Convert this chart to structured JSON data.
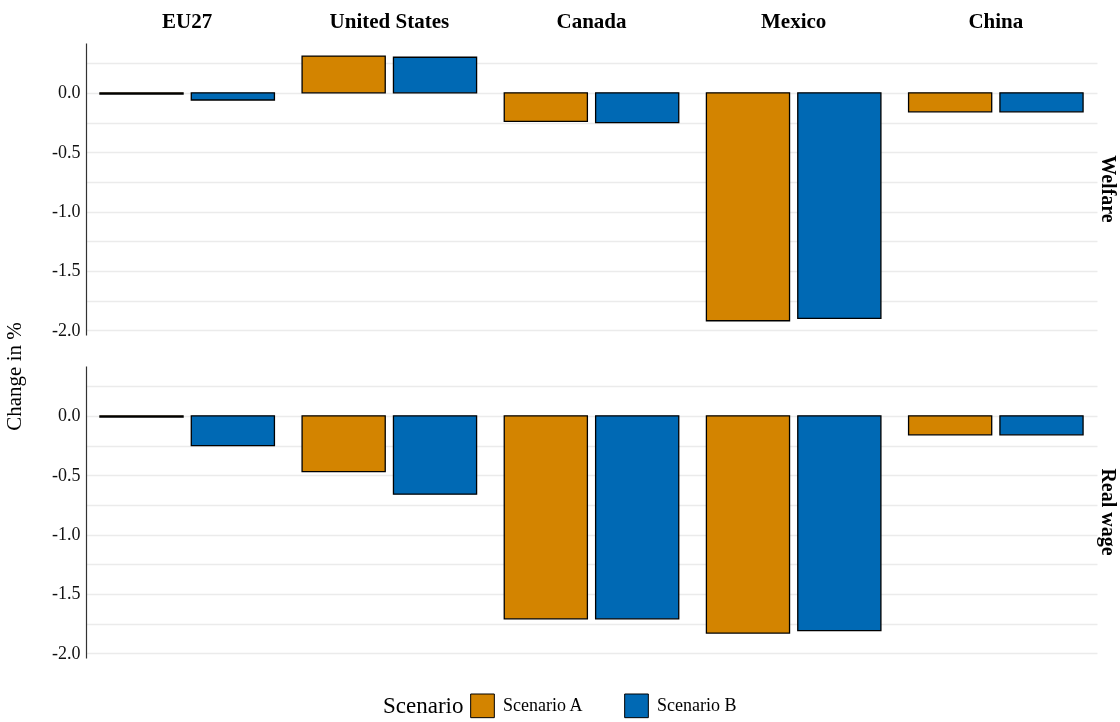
{
  "chart_data": [
    {
      "type": "bar",
      "y2label": "Welfare",
      "categories": [
        "EU27",
        "United States",
        "Canada",
        "Mexico",
        "China"
      ],
      "series": [
        {
          "color": "#d38400",
          "values": [
            -0.01,
            0.31,
            -0.24,
            -1.92,
            -0.16
          ]
        },
        {
          "color": "#0069b4",
          "values": [
            -0.06,
            0.3,
            -0.25,
            -1.9,
            -0.16
          ]
        }
      ],
      "ylim": [
        -2.04,
        0.42
      ],
      "yticks": [
        {
          "value": 0.25,
          "label": null
        },
        {
          "value": 0,
          "label": "0.0"
        },
        {
          "value": -0.25,
          "label": null
        },
        {
          "value": -0.5,
          "label": "-0.5"
        },
        {
          "value": -0.75,
          "label": null
        },
        {
          "value": -1,
          "label": "-1.0"
        },
        {
          "value": -1.25,
          "label": null
        },
        {
          "value": -1.5,
          "label": "-1.5"
        },
        {
          "value": -1.75,
          "label": null
        },
        {
          "value": -2,
          "label": "-2.0"
        }
      ],
      "grid": "y"
    },
    {
      "type": "bar",
      "ylabel": "Change in %",
      "y2label": "Real wage",
      "legend": "bottom",
      "legend_title": "Scenario",
      "categories": [
        null,
        null,
        null,
        null,
        null
      ],
      "series": [
        {
          "name": "Scenario A",
          "color": "#d38400",
          "values": [
            -0.01,
            -0.47,
            -1.71,
            -1.83,
            -0.16
          ]
        },
        {
          "name": "Scenario B",
          "color": "#0069b4",
          "values": [
            -0.25,
            -0.66,
            -1.71,
            -1.81,
            -0.16
          ]
        }
      ],
      "ylim": [
        -2.04,
        0.42
      ],
      "yticks": [
        {
          "value": 0.25,
          "label": null
        },
        {
          "value": 0,
          "label": "0.0"
        },
        {
          "value": -0.25,
          "label": null
        },
        {
          "value": -0.5,
          "label": "-0.5"
        },
        {
          "value": -0.75,
          "label": null
        },
        {
          "value": -1,
          "label": "-1.0"
        },
        {
          "value": -1.25,
          "label": null
        },
        {
          "value": -1.5,
          "label": "-1.5"
        },
        {
          "value": -1.75,
          "label": null
        },
        {
          "value": -2,
          "label": "-2.0"
        }
      ],
      "grid": "y"
    }
  ]
}
